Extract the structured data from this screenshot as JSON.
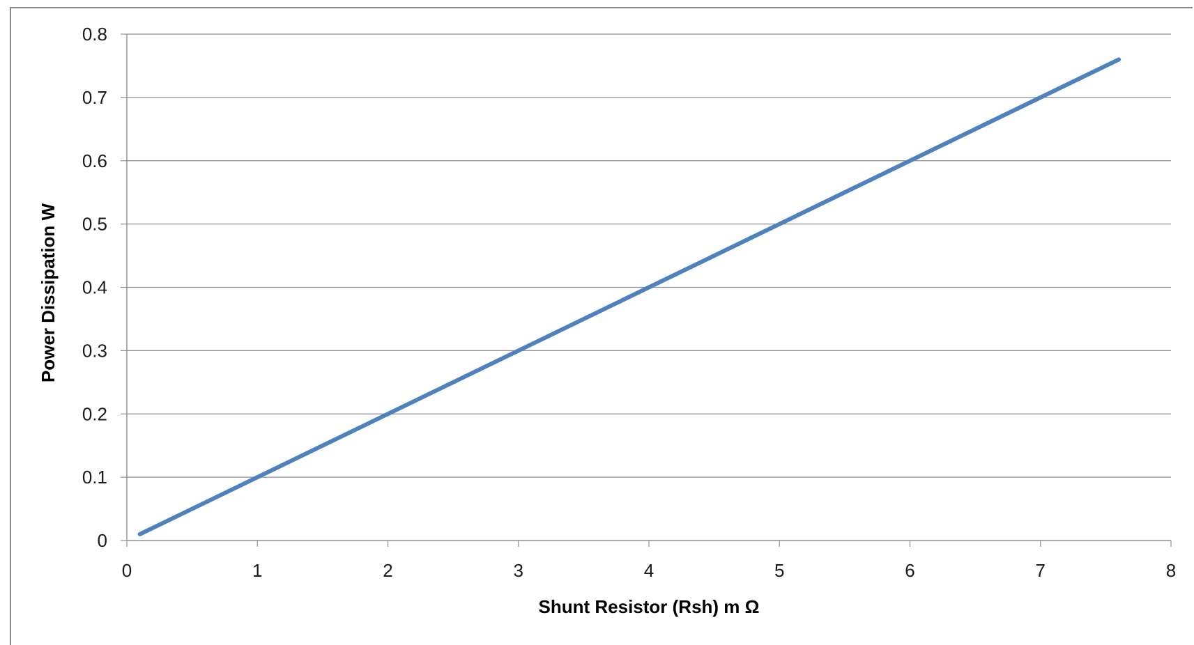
{
  "chart_data": {
    "type": "line",
    "title": "",
    "xlabel": "Shunt Resistor (Rsh) m Ω",
    "ylabel": "Power Dissipation W",
    "xlim": [
      0,
      8
    ],
    "ylim": [
      0,
      0.8
    ],
    "x_ticks": [
      "0",
      "1",
      "2",
      "3",
      "4",
      "5",
      "6",
      "7",
      "8"
    ],
    "y_ticks": [
      "0",
      "0.1",
      "0.2",
      "0.3",
      "0.4",
      "0.5",
      "0.6",
      "0.7",
      "0.8"
    ],
    "grid": "horizontal",
    "legend": "none",
    "series": [
      {
        "color": "#4f81bd",
        "x": [
          0.1,
          7.6
        ],
        "y": [
          0.01,
          0.76
        ]
      }
    ]
  }
}
